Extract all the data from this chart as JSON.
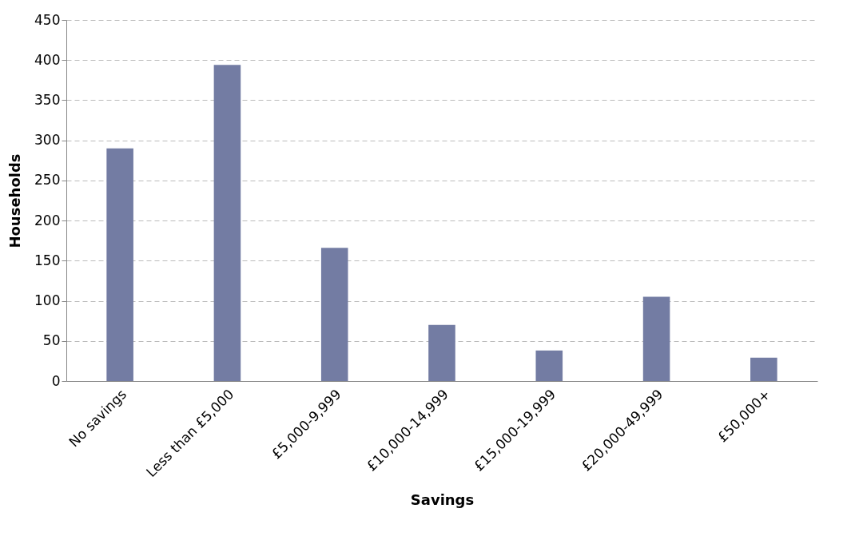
{
  "chart_data": {
    "type": "bar",
    "xlabel": "Savings",
    "ylabel": "Households",
    "categories": [
      "No savings",
      "Less than £5,000",
      "£5,000-9,999",
      "£10,000-14,999",
      "£15,000-19,999",
      "£20,000-49,999",
      "£50,000+"
    ],
    "values": [
      290,
      394,
      166,
      70,
      38,
      105,
      29
    ],
    "color": "#737ca3",
    "ylim": [
      0,
      450
    ],
    "yticks": [
      0,
      50,
      100,
      150,
      200,
      250,
      300,
      350,
      400,
      450
    ],
    "grid": "y"
  }
}
